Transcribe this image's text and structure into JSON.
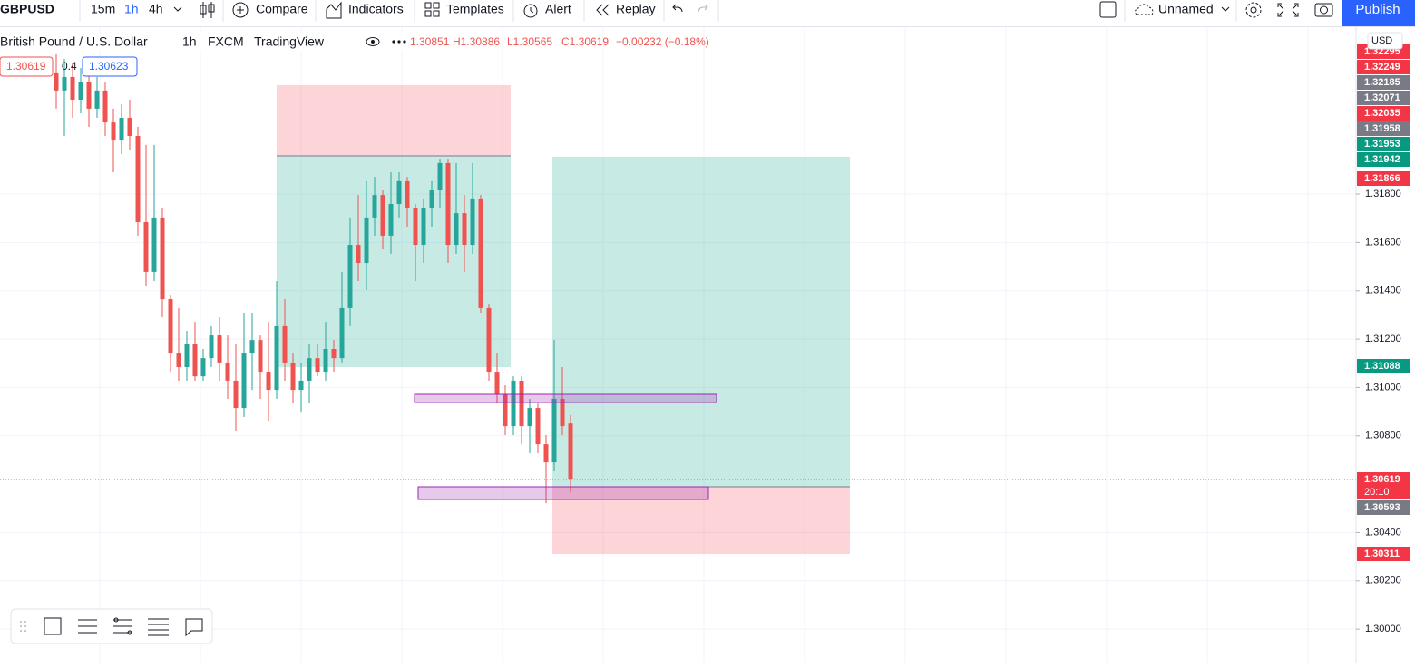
{
  "toolbar": {
    "symbol": "GBPUSD",
    "intervals": [
      "15m",
      "1h",
      "4h"
    ],
    "buttons": [
      "Compare",
      "Indicators",
      "Templates",
      "Alert",
      "Replay"
    ],
    "layout_name": "Unnamed",
    "publish": "Publish"
  },
  "legend": {
    "name": "British Pound / U.S. Dollar",
    "interval": "1h",
    "exchange": "FXCM",
    "source": "TradingView",
    "ohlc": "1.30851",
    "high": "H1.30886",
    "low": "L1.30565",
    "close": "C1.30619",
    "change": "−0.00232 (−0.18%)",
    "bid": "1.30619",
    "spread": "0.4",
    "ask": "1.30623"
  },
  "currency": "USD",
  "countdown": "20:10",
  "price_labels": [
    {
      "text": "1.32295",
      "color": "#f23645"
    },
    {
      "text": "1.32249",
      "color": "#f23645"
    },
    {
      "text": "1.32185",
      "color": "#787b86"
    },
    {
      "text": "1.32071",
      "color": "#787b86"
    },
    {
      "text": "1.32035",
      "color": "#f23645"
    },
    {
      "text": "1.31958",
      "color": "#787b86"
    },
    {
      "text": "1.31953",
      "color": "#089981"
    },
    {
      "text": "1.31942",
      "color": "#089981"
    },
    {
      "text": "1.31866",
      "color": "#f23645"
    },
    {
      "text": "1.31088",
      "color": "#089981"
    },
    {
      "text": "1.30619",
      "color": "#f23645"
    },
    {
      "text": "1.30593",
      "color": "#787b86"
    },
    {
      "text": "1.30311",
      "color": "#f23645"
    }
  ],
  "chart": {
    "type": "candlestick",
    "up_color": "#26a69a",
    "down_color": "#ef5350",
    "ylim": [
      1.29858,
      1.3249
    ],
    "yticks": [
      {
        "value": 1.318,
        "label": "1.31800"
      },
      {
        "value": 1.316,
        "label": "1.31600"
      },
      {
        "value": 1.314,
        "label": "1.31400"
      },
      {
        "value": 1.312,
        "label": "1.31200"
      },
      {
        "value": 1.31,
        "label": "1.31000"
      },
      {
        "value": 1.308,
        "label": "1.30800"
      },
      {
        "value": 1.304,
        "label": "1.30400"
      },
      {
        "value": 1.302,
        "label": "1.30200"
      },
      {
        "value": 1.3,
        "label": "1.30000"
      }
    ],
    "candles": [
      {
        "o": 1.32303,
        "h": 1.32378,
        "l": 1.32153,
        "c": 1.32228
      },
      {
        "o": 1.32228,
        "h": 1.32359,
        "l": 1.3204,
        "c": 1.32284
      },
      {
        "o": 1.32284,
        "h": 1.3234,
        "l": 1.32115,
        "c": 1.3219
      },
      {
        "o": 1.3219,
        "h": 1.32321,
        "l": 1.32134,
        "c": 1.32265
      },
      {
        "o": 1.32265,
        "h": 1.32303,
        "l": 1.32078,
        "c": 1.32153
      },
      {
        "o": 1.32153,
        "h": 1.32284,
        "l": 1.32115,
        "c": 1.32228
      },
      {
        "o": 1.32228,
        "h": 1.32265,
        "l": 1.3204,
        "c": 1.32096
      },
      {
        "o": 1.32096,
        "h": 1.32153,
        "l": 1.3189,
        "c": 1.32021
      },
      {
        "o": 1.32021,
        "h": 1.32171,
        "l": 1.31965,
        "c": 1.32115
      },
      {
        "o": 1.32115,
        "h": 1.3219,
        "l": 1.31984,
        "c": 1.3204
      },
      {
        "o": 1.3204,
        "h": 1.32078,
        "l": 1.31628,
        "c": 1.31684
      },
      {
        "o": 1.31684,
        "h": 1.32003,
        "l": 1.31421,
        "c": 1.31478
      },
      {
        "o": 1.31478,
        "h": 1.32003,
        "l": 1.3144,
        "c": 1.31703
      },
      {
        "o": 1.31703,
        "h": 1.3174,
        "l": 1.3129,
        "c": 1.31365
      },
      {
        "o": 1.31365,
        "h": 1.31384,
        "l": 1.31065,
        "c": 1.3114
      },
      {
        "o": 1.3114,
        "h": 1.31328,
        "l": 1.31028,
        "c": 1.31084
      },
      {
        "o": 1.31084,
        "h": 1.31234,
        "l": 1.31028,
        "c": 1.31178
      },
      {
        "o": 1.31178,
        "h": 1.31271,
        "l": 1.31028,
        "c": 1.31046
      },
      {
        "o": 1.31046,
        "h": 1.31159,
        "l": 1.31028,
        "c": 1.31121
      },
      {
        "o": 1.31121,
        "h": 1.31253,
        "l": 1.31084,
        "c": 1.31215
      },
      {
        "o": 1.31215,
        "h": 1.3129,
        "l": 1.31028,
        "c": 1.31103
      },
      {
        "o": 1.31103,
        "h": 1.31215,
        "l": 1.30953,
        "c": 1.31028
      },
      {
        "o": 1.31028,
        "h": 1.31178,
        "l": 1.30821,
        "c": 1.30915
      },
      {
        "o": 1.30915,
        "h": 1.31309,
        "l": 1.30878,
        "c": 1.3114
      },
      {
        "o": 1.3114,
        "h": 1.31309,
        "l": 1.3099,
        "c": 1.31196
      },
      {
        "o": 1.31196,
        "h": 1.31215,
        "l": 1.30953,
        "c": 1.31065
      },
      {
        "o": 1.31065,
        "h": 1.31271,
        "l": 1.30859,
        "c": 1.3099
      },
      {
        "o": 1.3099,
        "h": 1.3144,
        "l": 1.30953,
        "c": 1.31253
      },
      {
        "o": 1.31253,
        "h": 1.31365,
        "l": 1.31028,
        "c": 1.31103
      },
      {
        "o": 1.31103,
        "h": 1.3114,
        "l": 1.30934,
        "c": 1.3099
      },
      {
        "o": 1.3099,
        "h": 1.31103,
        "l": 1.30896,
        "c": 1.31028
      },
      {
        "o": 1.31028,
        "h": 1.31178,
        "l": 1.30934,
        "c": 1.31121
      },
      {
        "o": 1.31121,
        "h": 1.31178,
        "l": 1.31046,
        "c": 1.31065
      },
      {
        "o": 1.31065,
        "h": 1.31271,
        "l": 1.31028,
        "c": 1.31159
      },
      {
        "o": 1.31159,
        "h": 1.31196,
        "l": 1.31065,
        "c": 1.31121
      },
      {
        "o": 1.31121,
        "h": 1.31478,
        "l": 1.31103,
        "c": 1.31328
      },
      {
        "o": 1.31328,
        "h": 1.31703,
        "l": 1.31253,
        "c": 1.3159
      },
      {
        "o": 1.3159,
        "h": 1.31796,
        "l": 1.3144,
        "c": 1.31515
      },
      {
        "o": 1.31515,
        "h": 1.31853,
        "l": 1.31403,
        "c": 1.31703
      },
      {
        "o": 1.31703,
        "h": 1.31871,
        "l": 1.31628,
        "c": 1.31796
      },
      {
        "o": 1.31796,
        "h": 1.31815,
        "l": 1.31571,
        "c": 1.31628
      },
      {
        "o": 1.31628,
        "h": 1.3189,
        "l": 1.31553,
        "c": 1.31759
      },
      {
        "o": 1.31759,
        "h": 1.3189,
        "l": 1.31703,
        "c": 1.31853
      },
      {
        "o": 1.31853,
        "h": 1.31871,
        "l": 1.31665,
        "c": 1.3174
      },
      {
        "o": 1.3174,
        "h": 1.31759,
        "l": 1.3144,
        "c": 1.3159
      },
      {
        "o": 1.3159,
        "h": 1.31778,
        "l": 1.31515,
        "c": 1.3174
      },
      {
        "o": 1.3174,
        "h": 1.31853,
        "l": 1.31665,
        "c": 1.31815
      },
      {
        "o": 1.31815,
        "h": 1.31946,
        "l": 1.3174,
        "c": 1.31928
      },
      {
        "o": 1.31928,
        "h": 1.31946,
        "l": 1.31515,
        "c": 1.3159
      },
      {
        "o": 1.3159,
        "h": 1.31928,
        "l": 1.31553,
        "c": 1.31721
      },
      {
        "o": 1.31721,
        "h": 1.31796,
        "l": 1.31478,
        "c": 1.3159
      },
      {
        "o": 1.3159,
        "h": 1.31928,
        "l": 1.31553,
        "c": 1.31778
      },
      {
        "o": 1.31778,
        "h": 1.31796,
        "l": 1.31309,
        "c": 1.31328
      },
      {
        "o": 1.31328,
        "h": 1.31346,
        "l": 1.31028,
        "c": 1.31065
      },
      {
        "o": 1.31065,
        "h": 1.3114,
        "l": 1.30934,
        "c": 1.30971
      },
      {
        "o": 1.30971,
        "h": 1.31009,
        "l": 1.30803,
        "c": 1.3084
      },
      {
        "o": 1.3084,
        "h": 1.31046,
        "l": 1.30803,
        "c": 1.31028
      },
      {
        "o": 1.31028,
        "h": 1.31046,
        "l": 1.30765,
        "c": 1.3084
      },
      {
        "o": 1.3084,
        "h": 1.30953,
        "l": 1.30728,
        "c": 1.30915
      },
      {
        "o": 1.30915,
        "h": 1.30934,
        "l": 1.30728,
        "c": 1.30765
      },
      {
        "o": 1.30765,
        "h": 1.30803,
        "l": 1.30521,
        "c": 1.3069
      },
      {
        "o": 1.3069,
        "h": 1.31196,
        "l": 1.30653,
        "c": 1.30953
      },
      {
        "o": 1.30953,
        "h": 1.31084,
        "l": 1.30803,
        "c": 1.3084
      },
      {
        "o": 1.30851,
        "h": 1.30886,
        "l": 1.30565,
        "c": 1.30619
      }
    ]
  }
}
